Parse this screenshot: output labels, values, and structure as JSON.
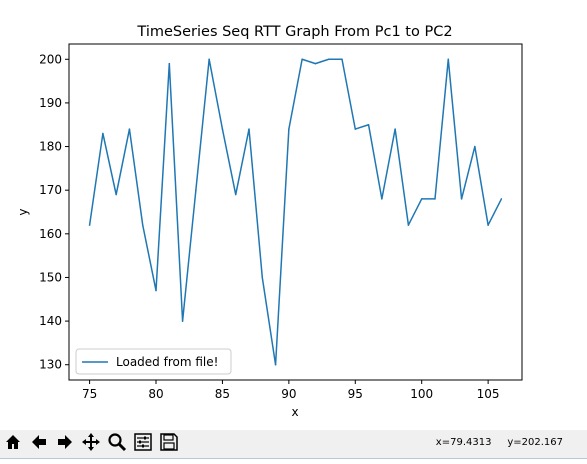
{
  "toolbar": {
    "buttons": [
      {
        "name": "home-icon"
      },
      {
        "name": "back-arrow-icon"
      },
      {
        "name": "forward-arrow-icon"
      },
      {
        "name": "pan-icon"
      },
      {
        "name": "zoom-icon"
      },
      {
        "name": "configure-subplots-icon"
      },
      {
        "name": "save-icon"
      }
    ],
    "coords_text": "x=79.4313     y=202.167"
  },
  "colors": {
    "line": "#1f77b4",
    "toolbar_bg": "#f0f0f0"
  },
  "chart_data": {
    "type": "line",
    "title": "TimeSeries Seq RTT Graph From Pc1 to PC2",
    "xlabel": "x",
    "ylabel": "y",
    "xlim": [
      73.45,
      107.55
    ],
    "ylim": [
      126.5,
      203.5
    ],
    "xticks": [
      75,
      80,
      85,
      90,
      95,
      100,
      105
    ],
    "yticks": [
      130,
      140,
      150,
      160,
      170,
      180,
      190,
      200
    ],
    "legend": {
      "position": "lower-left"
    },
    "series": [
      {
        "name": "Loaded from file!",
        "x": [
          75,
          76,
          77,
          78,
          79,
          80,
          81,
          82,
          83,
          84,
          85,
          86,
          87,
          88,
          89,
          90,
          91,
          92,
          93,
          94,
          95,
          96,
          97,
          98,
          99,
          100,
          101,
          102,
          103,
          104,
          105,
          106
        ],
        "y": [
          162,
          183,
          169,
          184,
          162,
          147,
          199,
          140,
          170,
          200,
          184,
          169,
          184,
          150,
          130,
          184,
          200,
          199,
          200,
          200,
          184,
          185,
          168,
          184,
          162,
          168,
          168,
          200,
          168,
          180,
          162,
          168
        ]
      }
    ]
  }
}
